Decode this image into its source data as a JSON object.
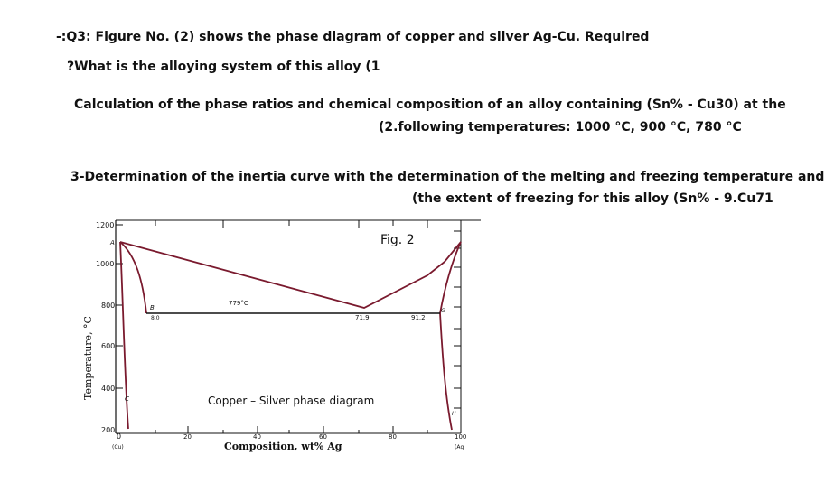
{
  "question": {
    "heading": "-:Q3: Figure No. (2) shows the phase diagram of copper and silver Ag-Cu. Required",
    "item1": "?What is the alloying system of this alloy (1",
    "item2_line1": "Calculation of the phase ratios and chemical composition of an alloy containing (Sn% - Cu30) at the",
    "item2_line2": "(2.following temperatures: 1000 °C, 900 °C, 780 °C",
    "item3_line1": "3-Determination of the inertia curve with the determination of the melting and freezing temperature and",
    "item3_line2": "(the extent of freezing for this alloy (Sn% - 9.Cu71"
  },
  "figure": {
    "fig_label": "Fig. 2",
    "caption": "Copper – Silver phase diagram",
    "ylabel": "Temperature, °C",
    "xlabel": "Composition, wt% Ag",
    "y_ticks": [
      "1200",
      "1000",
      "800",
      "600",
      "400",
      "200"
    ],
    "x_ticks": [
      "0",
      "20",
      "40",
      "60",
      "80",
      "100"
    ],
    "x_end_labels": {
      "left": "(Cu)",
      "right": "(Ag"
    },
    "points": {
      "A": "A",
      "B": "B",
      "C": "C",
      "G": "G",
      "H": "H"
    },
    "annotations": {
      "eutectic_temp": "779°C",
      "b_comp": "8.0",
      "eutectic_comp": "71.9",
      "g_comp": "91.2"
    },
    "colors": {
      "curve": "#7a1a2e",
      "axis": "#111111"
    }
  }
}
